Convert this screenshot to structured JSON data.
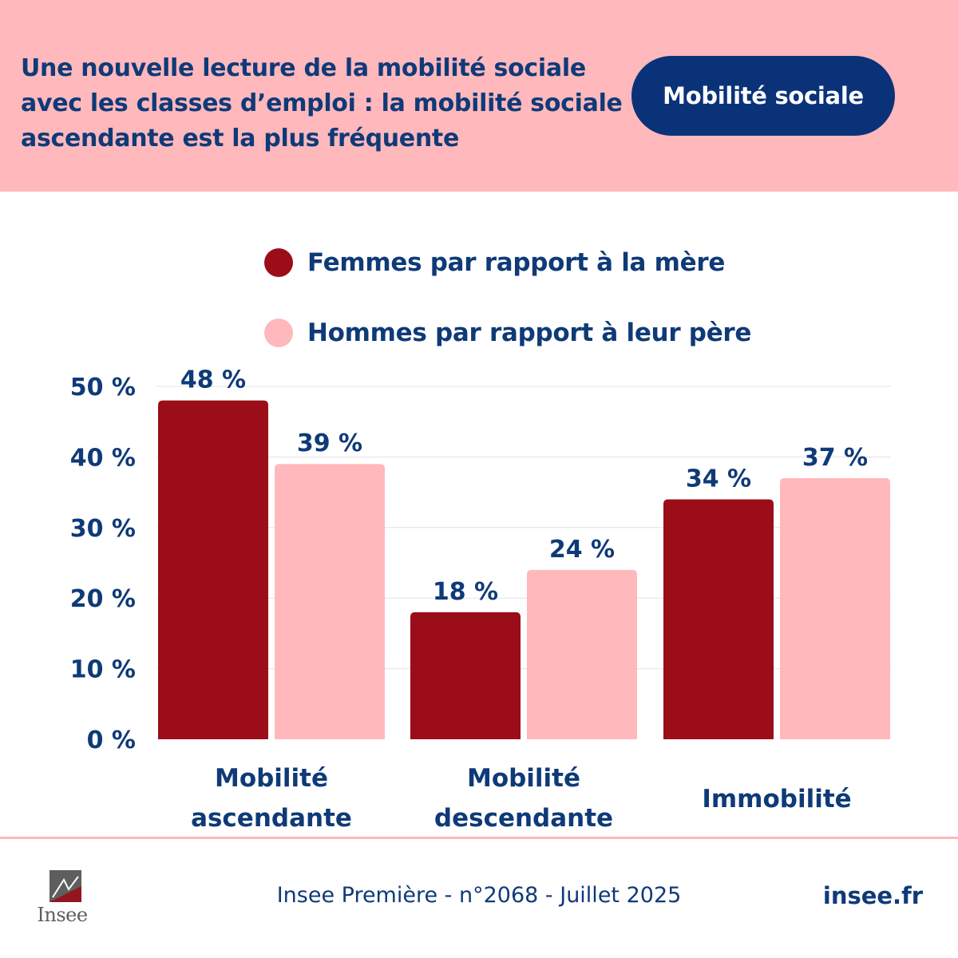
{
  "header": {
    "title_lines": [
      "Une nouvelle lecture de la mobilité sociale",
      "avec les classes d’emploi : la mobilité sociale",
      "ascendante est la plus fréquente"
    ],
    "tag": "Mobilité sociale"
  },
  "colors": {
    "header_background": "#ffb8bc",
    "title_text": "#0f3a78",
    "tag_background": "#0a3279",
    "femmes": "#9b0d18",
    "hommes": "#ffb8bc"
  },
  "chart_data": {
    "type": "bar",
    "categories": [
      "Mobilité ascendante",
      "Mobilité descendante",
      "Immobilité"
    ],
    "series": [
      {
        "name": "Femmes par rapport à la mère",
        "values": [
          48,
          18,
          34
        ],
        "labels": [
          "48 %",
          "18 %",
          "34 %"
        ],
        "color": "#9b0d18"
      },
      {
        "name": "Hommes par rapport à leur père",
        "values": [
          39,
          24,
          37
        ],
        "labels": [
          "39 %",
          "24 %",
          "37 %"
        ],
        "color": "#ffb8bc"
      }
    ],
    "ylim": [
      0,
      50
    ],
    "yticks": [
      {
        "value": 0,
        "label": "0 %"
      },
      {
        "value": 10,
        "label": "10 %"
      },
      {
        "value": 20,
        "label": "20 %"
      },
      {
        "value": 30,
        "label": "30 %"
      },
      {
        "value": 40,
        "label": "40 %"
      },
      {
        "value": 50,
        "label": "50 %"
      }
    ],
    "grid": true,
    "legend_position": "top"
  },
  "footer": {
    "logo_text": "Insee",
    "citation": "Insee Première - n°2068 - Juillet 2025",
    "site": "insee.fr"
  }
}
